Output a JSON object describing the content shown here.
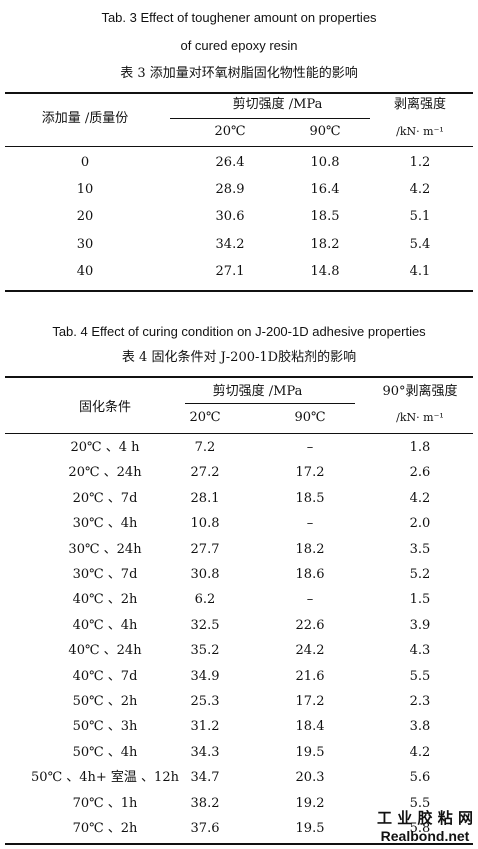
{
  "tables": [
    {
      "caption_en": [
        "Tab. 3   Effect of toughener amount on properties",
        "of cured epoxy resin"
      ],
      "caption_cn": "表 3   添加量对环氧树脂固化物性能的影响",
      "header": {
        "col1": "添加量 /质量份",
        "group": "剪切强度 /MPa",
        "sub1": "20℃",
        "sub2": "90℃",
        "col4": "剥离强度",
        "col4_unit": "/kN· m⁻¹"
      },
      "rows": [
        [
          "0",
          "26.4",
          "10.8",
          "1.2"
        ],
        [
          "10",
          "28.9",
          "16.4",
          "4.2"
        ],
        [
          "20",
          "30.6",
          "18.5",
          "5.1"
        ],
        [
          "30",
          "34.2",
          "18.2",
          "5.4"
        ],
        [
          "40",
          "27.1",
          "14.8",
          "4.1"
        ]
      ]
    },
    {
      "caption_en": [
        "Tab. 4   Effect of curing condition on J-200-1D adhesive properties"
      ],
      "caption_cn": "表 4   固化条件对 J-200-1D胶粘剂的影响",
      "header": {
        "col1": "固化条件",
        "group": "剪切强度 /MPa",
        "sub1": "20℃",
        "sub2": "90℃",
        "col4": "90°剥离强度",
        "col4_unit": "/kN· m⁻¹"
      },
      "rows": [
        [
          "20℃ 、4 h",
          "7.2",
          "–",
          "1.8"
        ],
        [
          "20℃ 、24h",
          "27.2",
          "17.2",
          "2.6"
        ],
        [
          "20℃ 、7d",
          "28.1",
          "18.5",
          "4.2"
        ],
        [
          "30℃ 、4h",
          "10.8",
          "–",
          "2.0"
        ],
        [
          "30℃ 、24h",
          "27.7",
          "18.2",
          "3.5"
        ],
        [
          "30℃ 、7d",
          "30.8",
          "18.6",
          "5.2"
        ],
        [
          "40℃ 、2h",
          "6.2",
          "–",
          "1.5"
        ],
        [
          "40℃ 、4h",
          "32.5",
          "22.6",
          "3.9"
        ],
        [
          "40℃ 、24h",
          "35.2",
          "24.2",
          "4.3"
        ],
        [
          "40℃ 、7d",
          "34.9",
          "21.6",
          "5.5"
        ],
        [
          "50℃ 、2h",
          "25.3",
          "17.2",
          "2.3"
        ],
        [
          "50℃ 、3h",
          "31.2",
          "18.4",
          "3.8"
        ],
        [
          "50℃ 、4h",
          "34.3",
          "19.5",
          "4.2"
        ],
        [
          "50℃ 、4h+ 室温 、12h",
          "34.7",
          "20.3",
          "5.6"
        ],
        [
          "70℃ 、1h",
          "38.2",
          "19.2",
          "5.5"
        ],
        [
          "70℃ 、2h",
          "37.6",
          "19.5",
          "5.8"
        ]
      ]
    }
  ],
  "watermark": {
    "cn": "工 业 胶 粘 网",
    "en": "Realbond.net"
  }
}
